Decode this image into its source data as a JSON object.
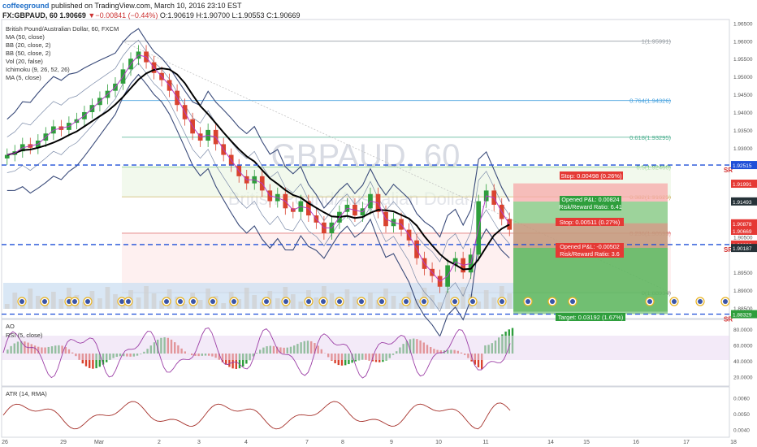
{
  "header": {
    "user": "coffeeground",
    "published": " published on TradingView.com, March 10, 2016 23:10 EST",
    "ticker_line": "FX:GBPAUD, 60 1.90669",
    "change": "▼−0.00841 (−0.44%)",
    "ohlc": "O:1.90619 H:1.90700 L:1.90553 C:1.90669"
  },
  "legend": {
    "title": "British Pound/Australian Dollar, 60, FXCM",
    "items": [
      "MA (50, close)",
      "BB (20, close, 2)",
      "BB (50, close, 2)",
      "Vol (20, false)",
      "Ichimoku (9, 26, 52, 26)",
      "MA (5, close)"
    ]
  },
  "watermark": {
    "symbol": "GBPAUD, 60",
    "name": "British Pound/Australian Dollar"
  },
  "fib_labels": [
    "1(1.95991)",
    "0.764(1.94326)",
    "0.618(1.93295)",
    "0.5(1.92460)",
    "0.382(1.91625)",
    "0.236(1.90599)",
    "0(1.88934)"
  ],
  "price_axis": {
    "ticks": [
      "1.96500",
      "1.96000",
      "1.95500",
      "1.95000",
      "1.94500",
      "1.94000",
      "1.93500",
      "1.93000",
      "1.92500",
      "1.91500",
      "1.90500",
      "1.89500",
      "1.89000",
      "1.88500"
    ],
    "badges": {
      "sr_upper": "1.92515",
      "stop_upper": "1.91991",
      "price1": "1.91493",
      "mid": "1.90878",
      "last": "1.90669",
      "ma": "58:10",
      "sr_mid": "1.90282",
      "price2": "1.90187",
      "sr_lower": "1.88329"
    }
  },
  "sr_label": "SR",
  "positions": {
    "short": {
      "stop": "Stop: 0.00498 (0.26%)",
      "pnl": "Opened P&L: 0.00824",
      "rr": "Risk/Reward Ratio: 6.41"
    },
    "long": {
      "stop": "Stop: 0.00511 (0.27%)",
      "pnl": "Opened P&L: -0.00502",
      "rr": "Risk/Reward Ratio: 3.6"
    },
    "target": "Target: 0.03192 (1.67%)"
  },
  "ao_legend": "AO",
  "rsi_legend": "RSI (5, close)",
  "rsi_axis": [
    "80.0000",
    "60.0000",
    "40.0000",
    "20.0000"
  ],
  "atr_legend": "ATR (14, RMA)",
  "atr_axis": [
    "0.0060",
    "0.0050",
    "0.0040"
  ],
  "time_axis": [
    "26",
    "29",
    "Mar",
    "2",
    "3",
    "4",
    "7",
    "8",
    "9",
    "10",
    "11",
    "14",
    "15",
    "16",
    "17",
    "18"
  ],
  "colors": {
    "up": "#2e9e3c",
    "down": "#d9432f",
    "ma50": "#000000",
    "bb": "#3a4b7a",
    "sr": "#1f4fd8",
    "fib": "#6a9fd8",
    "stop_red": "#e53935",
    "target_green": "#2e9e3c",
    "rsi": "#9c3fa6"
  },
  "chart_data": {
    "type": "candlestick",
    "symbol": "GBPAUD",
    "interval": "60",
    "close_series": [
      1.928,
      1.929,
      1.931,
      1.93,
      1.932,
      1.934,
      1.936,
      1.935,
      1.937,
      1.938,
      1.94,
      1.942,
      1.944,
      1.946,
      1.948,
      1.952,
      1.955,
      1.957,
      1.954,
      1.951,
      1.949,
      1.946,
      1.942,
      1.938,
      1.934,
      1.932,
      1.935,
      1.931,
      1.928,
      1.925,
      1.922,
      1.92,
      1.922,
      1.918,
      1.915,
      1.917,
      1.913,
      1.912,
      1.915,
      1.911,
      1.909,
      1.906,
      1.909,
      1.912,
      1.914,
      1.911,
      1.913,
      1.917,
      1.912,
      1.908,
      1.91,
      1.907,
      1.904,
      1.899,
      1.896,
      1.894,
      1.891,
      1.897,
      1.899,
      1.895,
      1.9,
      1.915,
      1.918,
      1.914,
      1.91,
      1.907
    ],
    "y_range": [
      1.8825,
      1.966
    ],
    "fib_levels": [
      1.95991,
      1.94326,
      1.93295,
      1.9246,
      1.91625,
      1.90599,
      1.88934
    ],
    "sr_levels": [
      1.92515,
      1.90282,
      1.88329
    ],
    "rsi_range": [
      10,
      90
    ],
    "atr_range": [
      0.0036,
      0.0066
    ]
  }
}
